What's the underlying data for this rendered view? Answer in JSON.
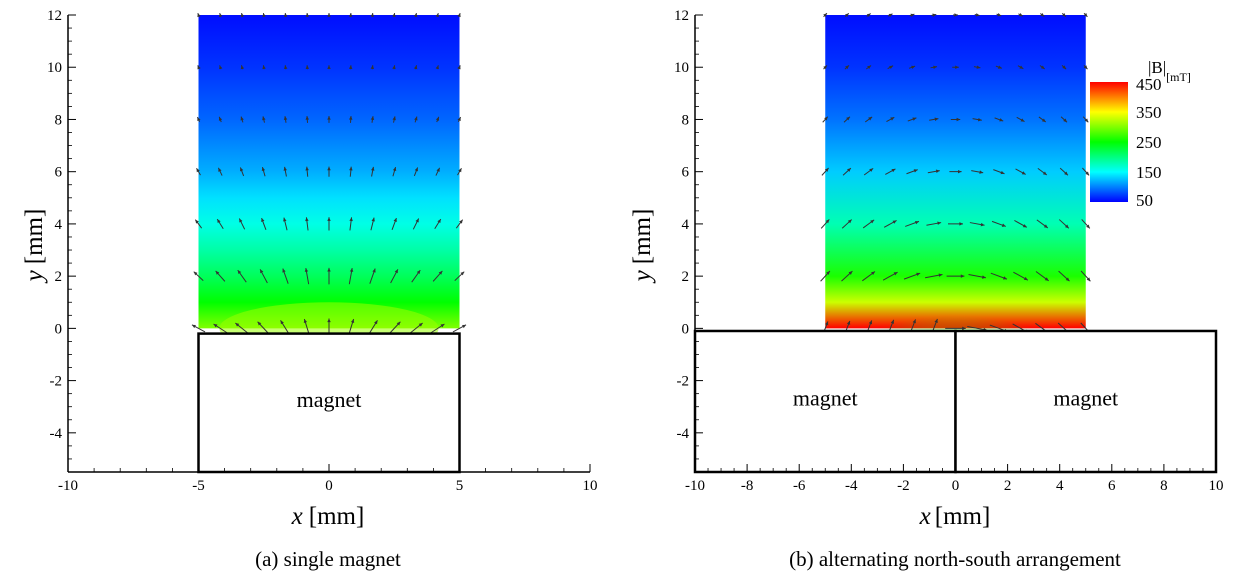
{
  "chart_data": [
    {
      "type": "heatmap",
      "panel": "a",
      "caption": "(a) single magnet",
      "xlabel_var": "x",
      "xlabel_unit": "[mm]",
      "ylabel_var": "y",
      "ylabel_unit": "[mm]",
      "xlim": [
        -10,
        10
      ],
      "ylim": [
        -5.5,
        12
      ],
      "xticks": [
        -10,
        -5,
        0,
        5,
        10
      ],
      "yticks": [
        -4,
        -2,
        0,
        2,
        4,
        6,
        8,
        10,
        12
      ],
      "field_region": {
        "x": [
          -5,
          5
        ],
        "y": [
          0,
          12
        ]
      },
      "magnets": [
        {
          "label": "magnet",
          "x": [
            -5,
            5
          ],
          "y": [
            -5.5,
            -0.2
          ]
        }
      ],
      "field_levels_mT": [
        {
          "y": 0,
          "value": 300
        },
        {
          "y": 1,
          "value": 250
        },
        {
          "y": 2,
          "value": 215
        },
        {
          "y": 3,
          "value": 185
        },
        {
          "y": 4,
          "value": 160
        },
        {
          "y": 5,
          "value": 138
        },
        {
          "y": 6,
          "value": 118
        },
        {
          "y": 8,
          "value": 90
        },
        {
          "y": 10,
          "value": 70
        },
        {
          "y": 12,
          "value": 55
        }
      ],
      "vectors": "radial from magnet center (0, -2.7)"
    },
    {
      "type": "heatmap",
      "panel": "b",
      "caption": "(b) alternating north-south arrangement",
      "xlabel_var": "x",
      "xlabel_unit": "[mm]",
      "ylabel_var": "y",
      "ylabel_unit": "[mm]",
      "xlim": [
        -10,
        10
      ],
      "ylim": [
        -5.5,
        12
      ],
      "xticks": [
        -10,
        -8,
        -6,
        -4,
        -2,
        0,
        2,
        4,
        6,
        8,
        10
      ],
      "yticks": [
        -4,
        -2,
        0,
        2,
        4,
        6,
        8,
        10,
        12
      ],
      "field_region": {
        "x": [
          -5,
          5
        ],
        "y": [
          0,
          12
        ]
      },
      "magnets": [
        {
          "label": "magnet",
          "x": [
            -10,
            0
          ],
          "y": [
            -5.5,
            -0.1
          ]
        },
        {
          "label": "magnet",
          "x": [
            0,
            10
          ],
          "y": [
            -5.5,
            -0.1
          ]
        }
      ],
      "field_levels_mT": [
        {
          "x": 0,
          "y": 0,
          "value": 450
        },
        {
          "x": 0,
          "y": 1,
          "value": 330
        },
        {
          "x": 0,
          "y": 2,
          "value": 260
        },
        {
          "x": 0,
          "y": 4,
          "value": 180
        },
        {
          "x": 0,
          "y": 6,
          "value": 130
        },
        {
          "x": 0,
          "y": 8,
          "value": 95
        },
        {
          "x": 0,
          "y": 10,
          "value": 70
        },
        {
          "x": 0,
          "y": 12,
          "value": 55
        }
      ],
      "vectors": "field loops from left magnet (north) to right magnet (south)",
      "colorbar": {
        "title": "|B|",
        "title_unit": "[mT]",
        "ticks": [
          450,
          350,
          250,
          150,
          50
        ],
        "range": [
          50,
          450
        ]
      }
    }
  ],
  "colormap": [
    "#0000ff",
    "#0080ff",
    "#00ffff",
    "#00ff80",
    "#00ff00",
    "#80ff00",
    "#ffff00",
    "#ff8000",
    "#ff0000"
  ]
}
